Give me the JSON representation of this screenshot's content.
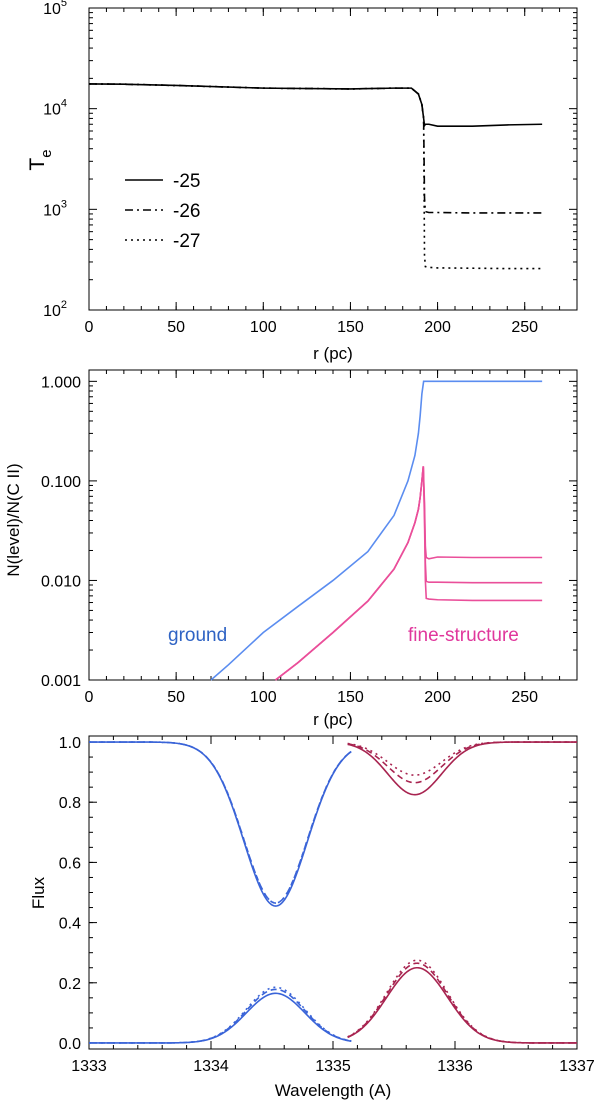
{
  "chart_data": [
    {
      "type": "line",
      "xlabel": "r (pc)",
      "ylabel": "T",
      "ylabel_sub": "e",
      "xlim": [
        0,
        280
      ],
      "ylim": [
        100,
        100000
      ],
      "yscale": "log",
      "xticks": [
        0,
        50,
        100,
        150,
        200,
        250
      ],
      "xtick_labels": [
        "0",
        "50",
        "100",
        "150",
        "200",
        "250"
      ],
      "yticks": [
        100,
        1000,
        10000,
        100000
      ],
      "ytick_labels": [
        [
          "10",
          "2"
        ],
        [
          "10",
          "3"
        ],
        [
          "10",
          "4"
        ],
        [
          "10",
          "5"
        ]
      ],
      "legend_position": "center-left",
      "series": [
        {
          "name": "-25",
          "style": "solid",
          "x": [
            0,
            20,
            50,
            100,
            150,
            175,
            185,
            189,
            191,
            192,
            192.5,
            193,
            195,
            200,
            220,
            240,
            260
          ],
          "y": [
            17600,
            17500,
            17000,
            16000,
            15700,
            16000,
            16000,
            14000,
            11000,
            8000,
            6800,
            7000,
            7000,
            6700,
            6700,
            6900,
            7000
          ]
        },
        {
          "name": "-26",
          "style": "dashdot",
          "x": [
            0,
            20,
            50,
            100,
            150,
            175,
            185,
            189,
            191,
            192,
            192.5,
            193,
            195,
            200,
            220,
            240,
            260
          ],
          "y": [
            17600,
            17500,
            17000,
            16000,
            15700,
            16000,
            16000,
            14000,
            11000,
            8000,
            1300,
            950,
            930,
            930,
            920,
            920,
            920
          ]
        },
        {
          "name": "-27",
          "style": "dotted",
          "x": [
            0,
            20,
            50,
            100,
            150,
            175,
            185,
            189,
            191,
            192,
            192.5,
            193,
            195,
            200,
            220,
            240,
            260
          ],
          "y": [
            17600,
            17500,
            17000,
            16000,
            15700,
            16000,
            16000,
            14000,
            11000,
            8000,
            350,
            270,
            265,
            262,
            260,
            258,
            258
          ]
        }
      ]
    },
    {
      "type": "line",
      "xlabel": "r (pc)",
      "ylabel": "N(level)/N(C II)",
      "xlim": [
        0,
        280
      ],
      "ylim": [
        0.001,
        1.3
      ],
      "yscale": "log",
      "xticks": [
        0,
        50,
        100,
        150,
        200,
        250
      ],
      "xtick_labels": [
        "0",
        "50",
        "100",
        "150",
        "200",
        "250"
      ],
      "yticks": [
        0.001,
        0.01,
        0.1,
        1
      ],
      "ytick_labels": [
        "0.001",
        "0.010",
        "0.100",
        "1.000"
      ],
      "annotations": [
        {
          "text": "ground",
          "color": "#2f63c4"
        },
        {
          "text": "fine-structure",
          "color": "#e0379c"
        }
      ],
      "series": [
        {
          "name": "ground",
          "color": "#5b8df0",
          "x": [
            70,
            80,
            100,
            120,
            140,
            160,
            175,
            183,
            187,
            189,
            190,
            191,
            192,
            193,
            200,
            220,
            260
          ],
          "y": [
            0.001,
            0.00142,
            0.003,
            0.0055,
            0.01,
            0.0195,
            0.045,
            0.1,
            0.18,
            0.3,
            0.45,
            0.75,
            1.0,
            1.0,
            1.0,
            1.0,
            1.0
          ]
        },
        {
          "name": "fine-structure (-25)",
          "color": "#ea4f9a",
          "x": [
            107,
            120,
            140,
            160,
            175,
            183,
            187,
            189,
            190,
            191,
            191.8,
            192.5,
            193,
            193.5,
            195,
            200,
            220,
            260
          ],
          "y": [
            0.001,
            0.0015,
            0.003,
            0.0062,
            0.013,
            0.024,
            0.038,
            0.052,
            0.068,
            0.1,
            0.14,
            0.06,
            0.022,
            0.017,
            0.0165,
            0.0172,
            0.017,
            0.017
          ]
        },
        {
          "name": "fine-structure (-26)",
          "color": "#ea4f9a",
          "x": [
            107,
            120,
            140,
            160,
            175,
            183,
            187,
            189,
            190,
            191,
            191.8,
            192.5,
            193,
            193.5,
            195,
            200,
            220,
            260
          ],
          "y": [
            0.001,
            0.0015,
            0.003,
            0.0062,
            0.013,
            0.024,
            0.038,
            0.052,
            0.068,
            0.1,
            0.14,
            0.05,
            0.015,
            0.0098,
            0.0096,
            0.0096,
            0.0095,
            0.0095
          ]
        },
        {
          "name": "fine-structure (-27)",
          "color": "#ea4f9a",
          "x": [
            107,
            120,
            140,
            160,
            175,
            183,
            187,
            189,
            190,
            191,
            191.8,
            192.5,
            193,
            193.5,
            195,
            200,
            220,
            260
          ],
          "y": [
            0.001,
            0.0015,
            0.003,
            0.0062,
            0.013,
            0.024,
            0.038,
            0.052,
            0.068,
            0.1,
            0.14,
            0.04,
            0.01,
            0.0066,
            0.0065,
            0.0064,
            0.0063,
            0.0063
          ]
        }
      ]
    },
    {
      "type": "line",
      "xlabel": "Wavelength (A)",
      "ylabel": "Flux",
      "xlim": [
        1333,
        1337
      ],
      "ylim": [
        -0.02,
        1.02
      ],
      "xticks": [
        1333,
        1334,
        1335,
        1336,
        1337
      ],
      "xtick_labels": [
        "1333",
        "1334",
        "1335",
        "1336",
        "1337"
      ],
      "yticks": [
        0.0,
        0.2,
        0.4,
        0.6,
        0.8,
        1.0
      ],
      "ytick_labels": [
        "0.0",
        "0.2",
        "0.4",
        "0.6",
        "0.8",
        "1.0"
      ],
      "profiles": [
        {
          "name": "ground absorption",
          "color": "#3a64d8",
          "center": 1334.53,
          "sigma": 0.26,
          "xrange": [
            1333,
            1335.15
          ],
          "baseline": 1.0,
          "depth": [
            0.545,
            0.535,
            0.535
          ],
          "styles": [
            "solid",
            "dashed",
            "dotted"
          ]
        },
        {
          "name": "ground emission",
          "color": "#3a64d8",
          "center": 1334.53,
          "sigma": 0.24,
          "xrange": [
            1333,
            1335.15
          ],
          "baseline": 0.0,
          "depth": [
            -0.165,
            -0.178,
            -0.185
          ],
          "styles": [
            "solid",
            "dashed",
            "dotted"
          ]
        },
        {
          "name": "fine-structure absorption",
          "color": "#a82450",
          "center": 1335.67,
          "sigma": 0.22,
          "xrange": [
            1335.12,
            1337
          ],
          "baseline": 1.0,
          "depth": [
            0.175,
            0.135,
            0.11
          ],
          "styles": [
            "solid",
            "dashed",
            "dotted"
          ]
        },
        {
          "name": "fine-structure emission",
          "color": "#a82450",
          "center": 1335.69,
          "sigma": 0.25,
          "xrange": [
            1335.12,
            1337
          ],
          "baseline": 0.0,
          "depth": [
            -0.25,
            -0.265,
            -0.275
          ],
          "styles": [
            "solid",
            "dashed",
            "dotted"
          ]
        }
      ]
    }
  ]
}
